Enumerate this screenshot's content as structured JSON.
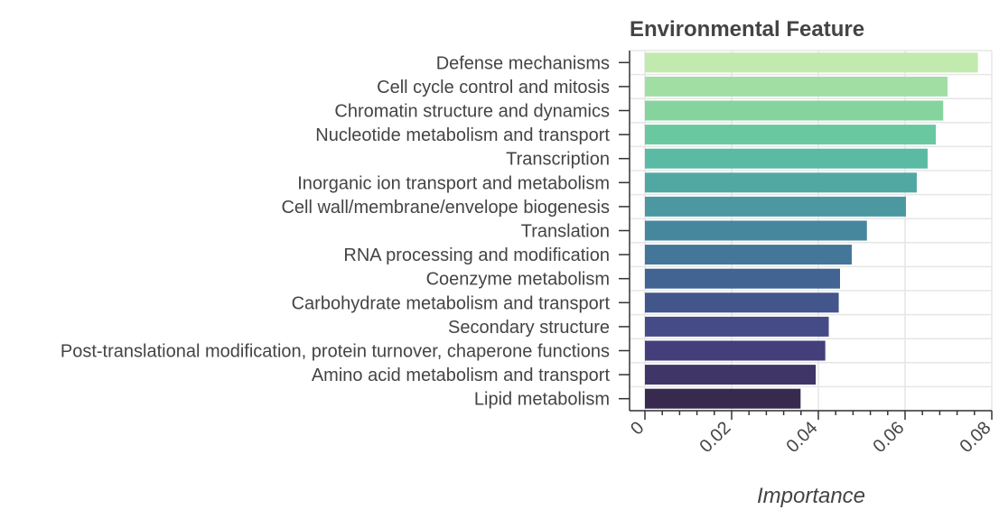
{
  "chart_data": {
    "type": "bar",
    "orientation": "horizontal",
    "title": "Environmental Feature",
    "xlabel": "Importance",
    "ylabel": "",
    "xlim": [
      0,
      0.08
    ],
    "x_ticks": [
      0,
      0.02,
      0.04,
      0.06,
      0.08
    ],
    "x_tick_labels": [
      "0",
      "0.02",
      "0.04",
      "0.06",
      "0.08"
    ],
    "grid": true,
    "legend": "none",
    "categories": [
      "Defense mechanisms",
      "Cell cycle control and mitosis",
      "Chromatin structure and dynamics",
      "Nucleotide metabolism and transport",
      "Transcription",
      "Inorganic ion transport and metabolism",
      "Cell wall/membrane/envelope biogenesis",
      "Translation",
      "RNA processing and modification",
      "Coenzyme metabolism",
      "Carbohydrate metabolism and transport",
      "Secondary structure",
      "Post-translational modification, protein turnover, chaperone functions",
      "Amino acid metabolism and transport",
      "Lipid metabolism"
    ],
    "values": [
      0.0768,
      0.0698,
      0.0688,
      0.0671,
      0.0652,
      0.0627,
      0.0602,
      0.0512,
      0.0477,
      0.045,
      0.0447,
      0.0424,
      0.0416,
      0.0394,
      0.0359
    ],
    "colors": [
      "#c2eaae",
      "#a1dea3",
      "#85d49e",
      "#6ac8a0",
      "#5bbaa3",
      "#51a8a3",
      "#4b98a1",
      "#46879d",
      "#437698",
      "#426492",
      "#42568c",
      "#444b87",
      "#443e7b",
      "#403567",
      "#382a4e"
    ]
  }
}
